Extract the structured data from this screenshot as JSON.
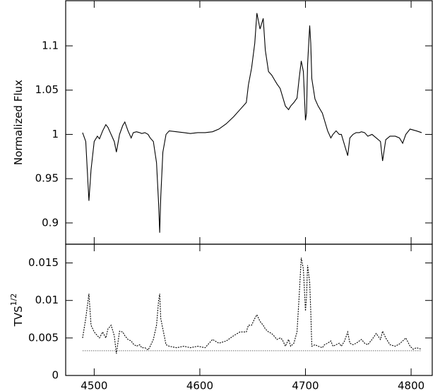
{
  "chart_data": [
    {
      "type": "line",
      "ylabel": "Normalized Flux",
      "color": "#000000",
      "dashed": false,
      "xlim": [
        4473,
        4820
      ],
      "xticks": [
        4500,
        4600,
        4700,
        4800
      ],
      "ylim": [
        0.876,
        1.151
      ],
      "yticks": [
        0.9,
        0.95,
        1,
        1.05,
        1.1
      ],
      "x": [
        4489,
        4492,
        4495,
        4497,
        4500,
        4503,
        4505,
        4508,
        4511,
        4513,
        4516,
        4519,
        4521,
        4524,
        4527,
        4529,
        4532,
        4535,
        4537,
        4540,
        4543,
        4545,
        4548,
        4551,
        4553,
        4556,
        4559,
        4561,
        4562,
        4563,
        4565,
        4568,
        4571,
        4578,
        4585,
        4591,
        4598,
        4605,
        4612,
        4618,
        4625,
        4632,
        4638,
        4644,
        4646,
        4649,
        4652,
        4654,
        4657,
        4660,
        4662,
        4665,
        4668,
        4670,
        4673,
        4676,
        4678,
        4681,
        4684,
        4686,
        4689,
        4692,
        4694,
        4696,
        4698,
        4700,
        4701,
        4702,
        4704,
        4705,
        4706,
        4709,
        4712,
        4716,
        4718,
        4721,
        4724,
        4726,
        4729,
        4732,
        4734,
        4737,
        4740,
        4742,
        4745,
        4748,
        4751,
        4753,
        4756,
        4759,
        4763,
        4767,
        4771,
        4773,
        4776,
        4780,
        4785,
        4789,
        4792,
        4795,
        4799,
        4802,
        4805,
        4810
      ],
      "values": [
        1.002,
        0.992,
        0.925,
        0.96,
        0.992,
        0.998,
        0.995,
        1.004,
        1.011,
        1.008,
        1.0,
        0.992,
        0.98,
        1.0,
        1.01,
        1.014,
        1.004,
        0.996,
        1.002,
        1.003,
        1.002,
        1.001,
        1.002,
        1.0,
        0.996,
        0.992,
        0.968,
        0.921,
        0.889,
        0.929,
        0.98,
        1.0,
        1.004,
        1.003,
        1.002,
        1.001,
        1.002,
        1.002,
        1.003,
        1.006,
        1.012,
        1.02,
        1.028,
        1.036,
        1.056,
        1.075,
        1.103,
        1.137,
        1.119,
        1.131,
        1.095,
        1.071,
        1.067,
        1.063,
        1.057,
        1.052,
        1.044,
        1.032,
        1.028,
        1.032,
        1.036,
        1.041,
        1.063,
        1.083,
        1.071,
        1.016,
        1.024,
        1.079,
        1.123,
        1.103,
        1.063,
        1.04,
        1.032,
        1.024,
        1.016,
        1.004,
        0.996,
        1.0,
        1.004,
        1.0,
        1.0,
        0.988,
        0.976,
        0.996,
        1.0,
        1.002,
        1.002,
        1.003,
        1.002,
        0.998,
        1.0,
        0.996,
        0.992,
        0.97,
        0.994,
        0.998,
        0.998,
        0.996,
        0.99,
        1.0,
        1.006,
        1.005,
        1.004,
        1.002
      ]
    },
    {
      "type": "line",
      "ylabel": "TVS",
      "ylabel_sup": "1/2",
      "color": "#000000",
      "dashed": true,
      "hline": 0.0033,
      "xlim": [
        4473,
        4820
      ],
      "xticks": [
        4500,
        4600,
        4700,
        4800
      ],
      "ylim": [
        0,
        0.0175
      ],
      "yticks": [
        0,
        0.005,
        0.01,
        0.015
      ],
      "x": [
        4489,
        4492,
        4495,
        4497,
        4500,
        4503,
        4505,
        4508,
        4511,
        4513,
        4516,
        4519,
        4521,
        4524,
        4527,
        4529,
        4532,
        4535,
        4537,
        4540,
        4543,
        4545,
        4548,
        4551,
        4553,
        4556,
        4559,
        4561,
        4562,
        4563,
        4565,
        4568,
        4571,
        4578,
        4585,
        4591,
        4598,
        4605,
        4612,
        4618,
        4625,
        4632,
        4638,
        4644,
        4646,
        4649,
        4652,
        4654,
        4657,
        4660,
        4662,
        4665,
        4668,
        4670,
        4673,
        4676,
        4678,
        4681,
        4684,
        4686,
        4689,
        4692,
        4694,
        4696,
        4698,
        4700,
        4701,
        4702,
        4704,
        4705,
        4706,
        4709,
        4712,
        4716,
        4718,
        4721,
        4724,
        4726,
        4729,
        4732,
        4734,
        4737,
        4740,
        4742,
        4745,
        4748,
        4751,
        4753,
        4756,
        4759,
        4763,
        4767,
        4771,
        4773,
        4776,
        4780,
        4785,
        4789,
        4792,
        4795,
        4799,
        4802,
        4805,
        4810
      ],
      "values": [
        0.005,
        0.0076,
        0.0109,
        0.0067,
        0.0058,
        0.0053,
        0.005,
        0.0058,
        0.005,
        0.0062,
        0.0067,
        0.0053,
        0.0029,
        0.0059,
        0.0058,
        0.0053,
        0.0048,
        0.0046,
        0.0042,
        0.0039,
        0.0041,
        0.0037,
        0.0037,
        0.0034,
        0.0039,
        0.0048,
        0.0067,
        0.01,
        0.0109,
        0.0076,
        0.0062,
        0.0041,
        0.0039,
        0.0037,
        0.0039,
        0.0037,
        0.0039,
        0.0037,
        0.0048,
        0.0043,
        0.0046,
        0.0053,
        0.0058,
        0.0058,
        0.0067,
        0.0067,
        0.0076,
        0.0081,
        0.0072,
        0.0067,
        0.0062,
        0.0058,
        0.0056,
        0.0053,
        0.0048,
        0.005,
        0.0048,
        0.0039,
        0.0048,
        0.0039,
        0.0043,
        0.0058,
        0.0105,
        0.0157,
        0.0142,
        0.0086,
        0.0105,
        0.0147,
        0.0124,
        0.0086,
        0.0039,
        0.0041,
        0.0039,
        0.0037,
        0.0041,
        0.0043,
        0.0046,
        0.0039,
        0.0041,
        0.0043,
        0.0039,
        0.0046,
        0.0058,
        0.0043,
        0.0041,
        0.0043,
        0.0046,
        0.0048,
        0.0043,
        0.0041,
        0.0048,
        0.0056,
        0.0048,
        0.0059,
        0.005,
        0.0041,
        0.0039,
        0.0042,
        0.0046,
        0.005,
        0.0039,
        0.0035,
        0.0037,
        0.0035
      ]
    }
  ]
}
